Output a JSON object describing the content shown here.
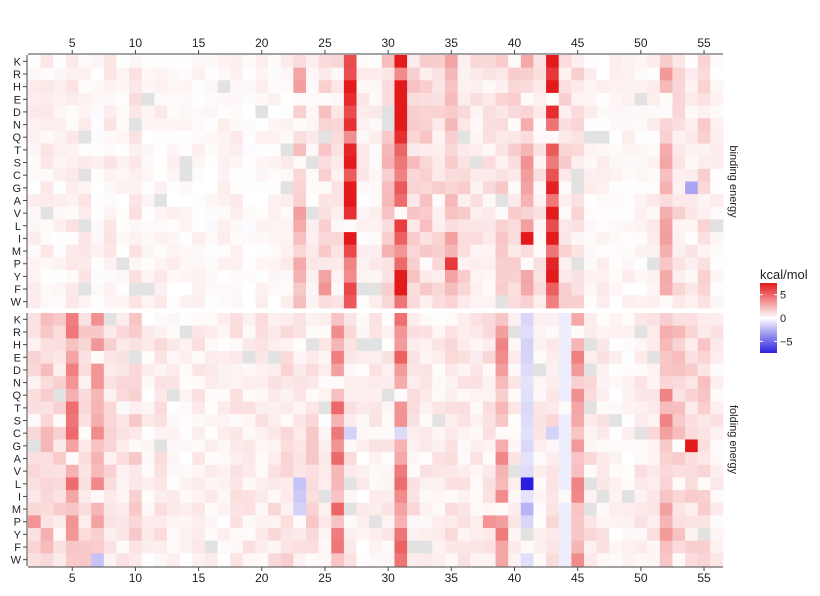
{
  "chart_data": {
    "type": "heatmap",
    "title": "",
    "legend": {
      "title": "kcal/mol",
      "ticks": [
        5,
        0,
        -5
      ],
      "range": [
        -7.5,
        7.5
      ],
      "colors": {
        "low": "#2a1fe0",
        "mid": "#ffffff",
        "high": "#e31a1c"
      },
      "placement": "right"
    },
    "positions": {
      "min": 2,
      "max": 56
    },
    "x_ticks": [
      5,
      10,
      15,
      20,
      25,
      30,
      35,
      40,
      45,
      50,
      55
    ],
    "rows": [
      "K",
      "R",
      "H",
      "E",
      "D",
      "N",
      "Q",
      "T",
      "S",
      "C",
      "G",
      "A",
      "V",
      "L",
      "I",
      "M",
      "P",
      "Y",
      "F",
      "W"
    ],
    "panels": [
      {
        "name": "binding energy",
        "column_baseline": [
          0.4,
          0.5,
          0.3,
          0.6,
          0.5,
          0.2,
          0.5,
          0.2,
          0.7,
          0.3,
          0.4,
          0.3,
          0.2,
          0.3,
          0.1,
          0.3,
          0.4,
          0.1,
          0.3,
          0.2,
          0.4,
          2.2,
          0.5,
          1.5,
          0.8,
          7.0,
          0.5,
          0.4,
          1.8,
          6.5,
          1.5,
          1.4,
          1.1,
          2.3,
          1.1,
          0.8,
          0.8,
          1.2,
          1.1,
          2.5,
          0.8,
          7.0,
          1.2,
          1.0,
          0.3,
          0.4,
          0.3,
          0.3,
          0.2,
          0.4,
          2.5,
          1.0,
          0.5,
          1.1,
          0.3
        ],
        "highlights": [
          {
            "row": "K",
            "pos": 43,
            "value": 7.5
          },
          {
            "row": "R",
            "pos": 43,
            "value": 6.5
          },
          {
            "row": "K",
            "pos": 35,
            "value": 3.0
          },
          {
            "row": "I",
            "pos": 41,
            "value": 7.5
          },
          {
            "row": "P",
            "pos": 35,
            "value": 6.5
          },
          {
            "row": "E",
            "pos": 31,
            "value": 7.5
          },
          {
            "row": "D",
            "pos": 31,
            "value": 7.5
          },
          {
            "row": "N",
            "pos": 31,
            "value": 7.5
          },
          {
            "row": "Y",
            "pos": 31,
            "value": 7.5
          },
          {
            "row": "F",
            "pos": 31,
            "value": 7.5
          },
          {
            "row": "G",
            "pos": 54,
            "value": -3.0
          },
          {
            "row": "P",
            "pos": 27,
            "value": 4.0
          },
          {
            "row": "Y",
            "pos": 25,
            "value": 3.0
          },
          {
            "row": "F",
            "pos": 25,
            "value": 3.5
          }
        ]
      },
      {
        "name": "folding energy",
        "column_baseline": [
          1.0,
          2.0,
          1.2,
          3.5,
          1.2,
          2.8,
          1.0,
          0.8,
          1.3,
          0.4,
          0.8,
          0.5,
          0.3,
          0.6,
          0.4,
          0.4,
          0.7,
          0.6,
          0.7,
          0.8,
          1.0,
          0.6,
          1.2,
          0.5,
          3.5,
          0.8,
          0.4,
          0.6,
          0.6,
          3.8,
          0.8,
          0.6,
          0.6,
          0.8,
          0.7,
          0.6,
          0.8,
          3.0,
          0.5,
          -1.2,
          0.6,
          0.8,
          -0.6,
          3.2,
          0.9,
          0.6,
          0.3,
          0.3,
          0.6,
          0.8,
          2.8,
          1.6,
          1.2,
          1.4,
          0.6
        ],
        "highlights": [
          {
            "row": "L",
            "pos": 41,
            "value": -7.5
          },
          {
            "row": "G",
            "pos": 54,
            "value": 7.5
          },
          {
            "row": "P",
            "pos": 2,
            "value": 3.5
          },
          {
            "row": "P",
            "pos": 5,
            "value": 3.5
          },
          {
            "row": "P",
            "pos": 7,
            "value": 3.0
          },
          {
            "row": "P",
            "pos": 38,
            "value": 3.5
          },
          {
            "row": "C",
            "pos": 27,
            "value": -1.5
          },
          {
            "row": "C",
            "pos": 31,
            "value": -1.2
          },
          {
            "row": "C",
            "pos": 43,
            "value": -1.5
          },
          {
            "row": "W",
            "pos": 7,
            "value": -2.0
          },
          {
            "row": "M",
            "pos": 41,
            "value": -2.5
          },
          {
            "row": "L",
            "pos": 23,
            "value": -2.0
          },
          {
            "row": "I",
            "pos": 23,
            "value": -1.8
          },
          {
            "row": "M",
            "pos": 23,
            "value": -1.5
          },
          {
            "row": "G",
            "pos": 53,
            "value": 0.0
          },
          {
            "row": "H",
            "pos": 41,
            "value": -1.5
          }
        ]
      }
    ]
  }
}
